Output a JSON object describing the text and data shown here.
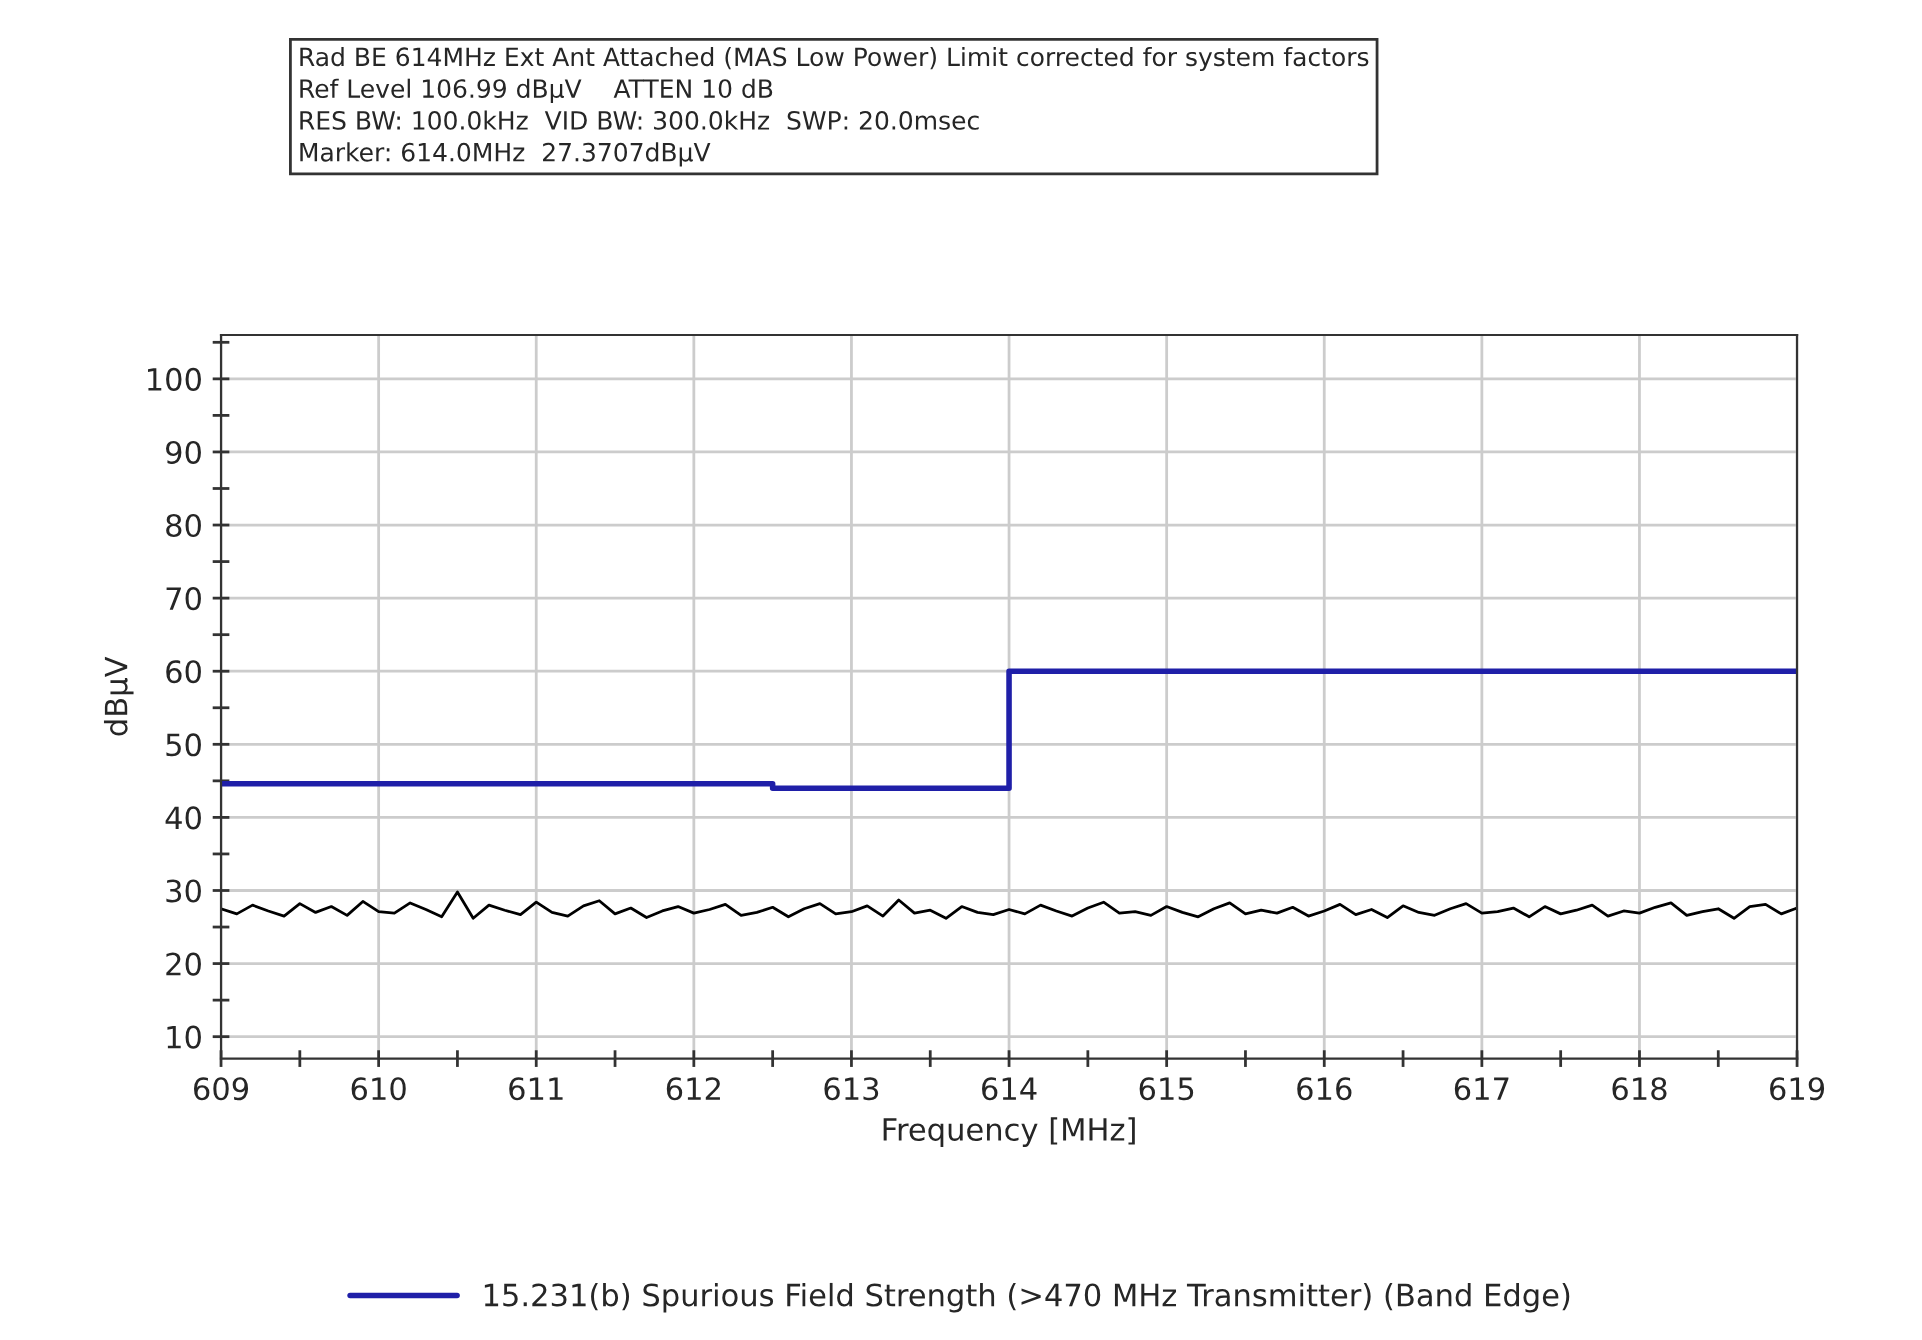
{
  "chart_data": {
    "type": "line",
    "title": "Rad BE 614MHz Ext Ant Attached (MAS Low Power) Limit corrected for system factors",
    "annotations": [
      "Ref Level 106.99 dBµV    ATTEN 10 dB",
      "RES BW: 100.0kHz  VID BW: 300.0kHz  SWP: 20.0msec",
      "Marker: 614.0MHz  27.3707dBµV"
    ],
    "xlabel": "Frequency [MHz]",
    "ylabel": "dBµV",
    "xlim": [
      609,
      619
    ],
    "ylim": [
      7,
      106
    ],
    "xticks": [
      609,
      {
        "value": 609.5,
        "label": null
      },
      610,
      {
        "value": 610.5,
        "label": null
      },
      611,
      {
        "value": 611.5,
        "label": null
      },
      612,
      {
        "value": 612.5,
        "label": null
      },
      613,
      {
        "value": 613.5,
        "label": null
      },
      614,
      {
        "value": 614.5,
        "label": null
      },
      615,
      {
        "value": 615.5,
        "label": null
      },
      616,
      {
        "value": 616.5,
        "label": null
      },
      617,
      {
        "value": 617.5,
        "label": null
      },
      618,
      {
        "value": 618.5,
        "label": null
      },
      619
    ],
    "yticks": [
      10,
      {
        "value": 15,
        "label": null
      },
      20,
      {
        "value": 25,
        "label": null
      },
      30,
      {
        "value": 35,
        "label": null
      },
      40,
      {
        "value": 45,
        "label": null
      },
      50,
      {
        "value": 55,
        "label": null
      },
      60,
      {
        "value": 65,
        "label": null
      },
      70,
      {
        "value": 75,
        "label": null
      },
      80,
      {
        "value": 85,
        "label": null
      },
      90,
      {
        "value": 95,
        "label": null
      },
      100,
      {
        "value": 105,
        "label": null
      }
    ],
    "grid": true,
    "legend": "bottom",
    "marker": "none",
    "line_style": "solid",
    "series": [
      {
        "name": "15.231(b) Spurious Field Strength (>470 MHz Transmitter) (Band Edge)",
        "color": "#1f1fa8",
        "type": "step",
        "x": [
          609,
          612.5,
          614,
          619
        ],
        "values": [
          44.6,
          44.0,
          60.0,
          60.0
        ]
      },
      {
        "color": "#000000",
        "x": [
          609.0,
          609.1,
          609.2,
          609.3,
          609.4,
          609.5,
          609.6,
          609.7,
          609.8,
          609.9,
          610.0,
          610.1,
          610.2,
          610.3,
          610.4,
          610.5,
          610.6,
          610.7,
          610.8,
          610.9,
          611.0,
          611.1,
          611.2,
          611.3,
          611.4,
          611.5,
          611.6,
          611.7,
          611.8,
          611.9,
          612.0,
          612.1,
          612.2,
          612.3,
          612.4,
          612.5,
          612.6,
          612.7,
          612.8,
          612.9,
          613.0,
          613.1,
          613.2,
          613.3,
          613.4,
          613.5,
          613.6,
          613.7,
          613.8,
          613.9,
          614.0,
          614.1,
          614.2,
          614.3,
          614.4,
          614.5,
          614.6,
          614.7,
          614.8,
          614.9,
          615.0,
          615.1,
          615.2,
          615.3,
          615.4,
          615.5,
          615.6,
          615.7,
          615.8,
          615.9,
          616.0,
          616.1,
          616.2,
          616.3,
          616.4,
          616.5,
          616.6,
          616.7,
          616.8,
          616.9,
          617.0,
          617.1,
          617.2,
          617.3,
          617.4,
          617.5,
          617.6,
          617.7,
          617.8,
          617.9,
          618.0,
          618.1,
          618.2,
          618.3,
          618.4,
          618.5,
          618.6,
          618.7,
          618.8,
          618.9,
          619.0
        ],
        "values": [
          27.5,
          26.8,
          28.0,
          27.2,
          26.5,
          28.2,
          27.0,
          27.8,
          26.6,
          28.5,
          27.1,
          26.9,
          28.3,
          27.4,
          26.4,
          29.8,
          26.2,
          28.0,
          27.3,
          26.7,
          28.4,
          27.0,
          26.5,
          27.9,
          28.6,
          26.8,
          27.6,
          26.3,
          27.2,
          27.8,
          26.9,
          27.4,
          28.1,
          26.6,
          27.0,
          27.7,
          26.4,
          27.5,
          28.2,
          26.8,
          27.1,
          27.9,
          26.5,
          28.7,
          26.9,
          27.3,
          26.2,
          27.8,
          27.0,
          26.7,
          27.4,
          26.8,
          28.0,
          27.2,
          26.5,
          27.6,
          28.4,
          26.9,
          27.1,
          26.6,
          27.8,
          27.0,
          26.4,
          27.5,
          28.3,
          26.8,
          27.3,
          26.9,
          27.7,
          26.5,
          27.2,
          28.1,
          26.7,
          27.4,
          26.3,
          27.9,
          27.0,
          26.6,
          27.5,
          28.2,
          26.9,
          27.1,
          27.6,
          26.4,
          27.8,
          26.8,
          27.3,
          28.0,
          26.5,
          27.2,
          26.9,
          27.7,
          28.3,
          26.6,
          27.1,
          27.5,
          26.2,
          27.8,
          28.1,
          26.8,
          27.6
        ]
      }
    ]
  }
}
